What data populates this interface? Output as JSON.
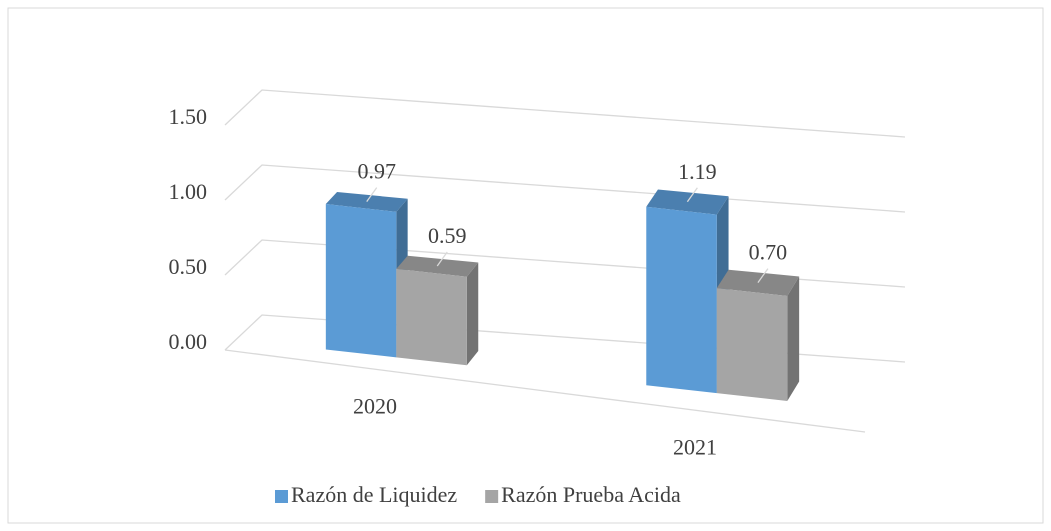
{
  "chart_data": {
    "type": "bar3d",
    "categories": [
      "2020",
      "2021"
    ],
    "series": [
      {
        "name": "Razón de Liquidez",
        "color": "#5b9bd5",
        "values": [
          0.97,
          1.19
        ],
        "value_labels": [
          "0.97",
          "1.19"
        ]
      },
      {
        "name": "Razón Prueba Acida",
        "color": "#a5a5a5",
        "values": [
          0.59,
          0.7
        ],
        "value_labels": [
          "0.59",
          "0.70"
        ]
      }
    ],
    "ylim": [
      0,
      1.5
    ],
    "yticks": [
      {
        "value": 0,
        "label": "0.00"
      },
      {
        "value": 0.5,
        "label": "0.50"
      },
      {
        "value": 1,
        "label": "1.00"
      },
      {
        "value": 1.5,
        "label": "1.50"
      }
    ],
    "grid": true,
    "legend": "bottom"
  }
}
